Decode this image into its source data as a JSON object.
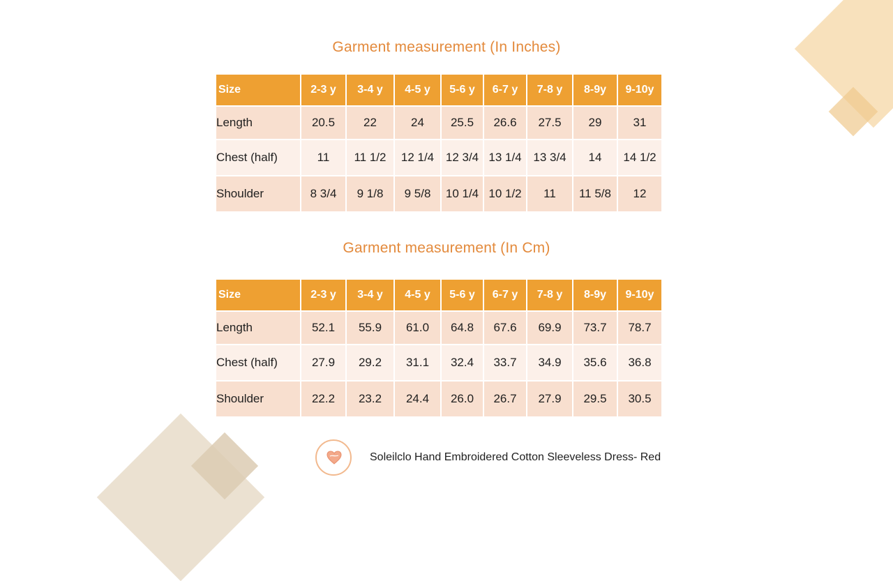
{
  "inches": {
    "title": "Garment measurement (In Inches)",
    "headers": [
      "Size",
      "2-3 y",
      "3-4 y",
      "4-5 y",
      "5-6 y",
      "6-7 y",
      "7-8 y",
      "8-9y",
      "9-10y"
    ],
    "rows": [
      {
        "label": "Length",
        "values": [
          "20.5",
          "22",
          "24",
          "25.5",
          "26.6",
          "27.5",
          "29",
          "31"
        ]
      },
      {
        "label": "Chest (half)",
        "values": [
          "11",
          "11 1/2",
          "12 1/4",
          "12 3/4",
          "13 1/4",
          "13 3/4",
          "14",
          "14 1/2"
        ]
      },
      {
        "label": "Shoulder",
        "values": [
          "8 3/4",
          "9 1/8",
          "9 5/8",
          "10 1/4",
          "10 1/2",
          "11",
          "11 5/8",
          "12"
        ]
      }
    ]
  },
  "cm": {
    "title": "Garment measurement (In Cm)",
    "headers": [
      "Size",
      "2-3 y",
      "3-4 y",
      "4-5 y",
      "5-6 y",
      "6-7 y",
      "7-8 y",
      "8-9y",
      "9-10y"
    ],
    "rows": [
      {
        "label": "Length",
        "values": [
          "52.1",
          "55.9",
          "61.0",
          "64.8",
          "67.6",
          "69.9",
          "73.7",
          "78.7"
        ]
      },
      {
        "label": "Chest (half)",
        "values": [
          "27.9",
          "29.2",
          "31.1",
          "32.4",
          "33.7",
          "34.9",
          "35.6",
          "36.8"
        ]
      },
      {
        "label": "Shoulder",
        "values": [
          "22.2",
          "23.2",
          "24.4",
          "26.0",
          "26.7",
          "27.9",
          "29.5",
          "30.5"
        ]
      }
    ]
  },
  "footer": {
    "product_name": "Soleilclo Hand Embroidered Cotton Sleeveless Dress- Red",
    "logo_icon": "heart-logo-icon"
  },
  "colors": {
    "accent": "#e38a3c",
    "header_bg": "#eea032",
    "row_dark": "#f8dfcf",
    "row_light": "#fcf0e9"
  }
}
